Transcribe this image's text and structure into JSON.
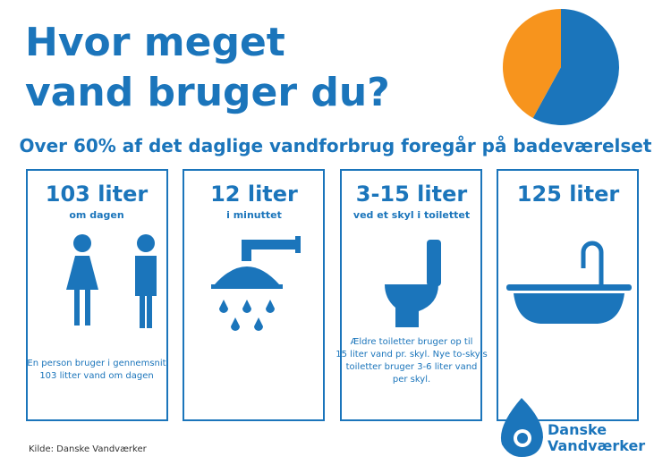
{
  "header": {
    "title_lines": [
      "Hvor meget",
      "vand bruger du?"
    ],
    "subtitle": "Over 60% af det daglige vandforbrug foregår på badeværelset"
  },
  "pie": {
    "values": [
      58,
      42
    ],
    "colors": [
      "#1b75bb",
      "#f7941d"
    ]
  },
  "cards": [
    {
      "amount": "103 liter",
      "unit": "om dagen",
      "note_lines": [
        "En person bruger i gennemsnit",
        "103 litter vand om dagen"
      ]
    },
    {
      "amount": "12 liter",
      "unit": "i minuttet"
    },
    {
      "amount": "3-15 liter",
      "unit": "ved et skyl i toilettet",
      "note_lines": [
        "Ældre toiletter bruger op til",
        "15 liter vand pr. skyl.  Nye to-skyls",
        "toiletter bruger 3-6 liter vand",
        "per skyl."
      ]
    },
    {
      "amount": "125 liter"
    }
  ],
  "footer": {
    "source": "Kilde: Danske Vandværker",
    "logo_lines": [
      "Danske",
      "Vandværker"
    ]
  }
}
